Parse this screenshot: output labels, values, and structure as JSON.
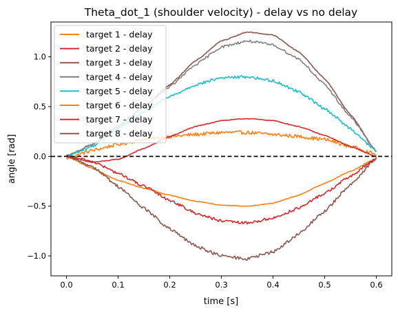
{
  "chart_data": {
    "type": "line",
    "title": "Theta_dot_1 (shoulder velocity) - delay vs no delay",
    "xlabel": "time [s]",
    "ylabel": "angle [rad]",
    "xlim": [
      -0.03,
      0.63
    ],
    "ylim": [
      -1.2,
      1.35
    ],
    "xticks": [
      0.0,
      0.1,
      0.2,
      0.3,
      0.4,
      0.5,
      0.6
    ],
    "xtick_labels": [
      "0.0",
      "0.1",
      "0.2",
      "0.3",
      "0.4",
      "0.5",
      "0.6"
    ],
    "yticks": [
      -1.0,
      -0.5,
      0.0,
      0.5,
      1.0
    ],
    "ytick_labels": [
      "−1.0",
      "−0.5",
      "0.0",
      "0.5",
      "1.0"
    ],
    "grid": false,
    "legend_position": "top-left",
    "reference_line": {
      "y": 0,
      "style": "dashed",
      "color": "#000000"
    },
    "series": [
      {
        "name": "target 1 - delay",
        "color": "#ff7f0e",
        "noise": 0.018,
        "x": [
          0.0,
          0.05,
          0.1,
          0.15,
          0.2,
          0.25,
          0.3,
          0.35,
          0.4,
          0.45,
          0.5,
          0.55,
          0.6
        ],
        "y": [
          -0.02,
          0.06,
          0.12,
          0.17,
          0.2,
          0.22,
          0.24,
          0.24,
          0.22,
          0.2,
          0.17,
          0.1,
          0.02
        ]
      },
      {
        "name": "target 2 - delay",
        "color": "#d62728",
        "noise": 0.004,
        "x": [
          0.0,
          0.05,
          0.1,
          0.15,
          0.2,
          0.25,
          0.3,
          0.35,
          0.4,
          0.45,
          0.5,
          0.55,
          0.6
        ],
        "y": [
          0.0,
          -0.06,
          -0.03,
          0.08,
          0.2,
          0.3,
          0.36,
          0.38,
          0.36,
          0.3,
          0.21,
          0.1,
          0.0
        ]
      },
      {
        "name": "target 3 - delay",
        "color": "#8c564b",
        "noise": 0.004,
        "x": [
          0.0,
          0.05,
          0.1,
          0.15,
          0.2,
          0.25,
          0.3,
          0.35,
          0.4,
          0.45,
          0.5,
          0.55,
          0.6
        ],
        "y": [
          0.0,
          0.12,
          0.3,
          0.5,
          0.72,
          0.96,
          1.16,
          1.25,
          1.22,
          1.05,
          0.78,
          0.42,
          0.05
        ]
      },
      {
        "name": "target 4 - delay",
        "color": "#7f7f7f",
        "noise": 0.012,
        "x": [
          0.0,
          0.05,
          0.1,
          0.15,
          0.2,
          0.25,
          0.3,
          0.35,
          0.4,
          0.45,
          0.5,
          0.55,
          0.6
        ],
        "y": [
          0.0,
          0.12,
          0.3,
          0.5,
          0.7,
          0.92,
          1.1,
          1.16,
          1.12,
          0.98,
          0.72,
          0.4,
          0.05
        ]
      },
      {
        "name": "target 5 - delay",
        "color": "#17becf",
        "noise": 0.014,
        "x": [
          0.0,
          0.05,
          0.1,
          0.15,
          0.2,
          0.25,
          0.3,
          0.35,
          0.4,
          0.45,
          0.5,
          0.55,
          0.6
        ],
        "y": [
          0.0,
          0.1,
          0.28,
          0.45,
          0.6,
          0.72,
          0.79,
          0.8,
          0.76,
          0.65,
          0.48,
          0.28,
          0.05
        ]
      },
      {
        "name": "target 6 - delay",
        "color": "#ff7f0e",
        "noise": 0.004,
        "x": [
          0.0,
          0.05,
          0.1,
          0.15,
          0.2,
          0.25,
          0.3,
          0.35,
          0.4,
          0.45,
          0.5,
          0.55,
          0.6
        ],
        "y": [
          0.0,
          -0.12,
          -0.24,
          -0.32,
          -0.39,
          -0.45,
          -0.49,
          -0.5,
          -0.47,
          -0.39,
          -0.27,
          -0.15,
          -0.02
        ]
      },
      {
        "name": "target 7 - delay",
        "color": "#d62728",
        "noise": 0.014,
        "x": [
          0.0,
          0.05,
          0.1,
          0.15,
          0.2,
          0.25,
          0.3,
          0.35,
          0.4,
          0.45,
          0.5,
          0.55,
          0.6
        ],
        "y": [
          0.0,
          -0.05,
          -0.17,
          -0.3,
          -0.44,
          -0.57,
          -0.65,
          -0.67,
          -0.62,
          -0.52,
          -0.37,
          -0.2,
          -0.02
        ]
      },
      {
        "name": "target 8 - delay",
        "color": "#8c564b",
        "noise": 0.016,
        "x": [
          0.0,
          0.05,
          0.1,
          0.15,
          0.2,
          0.25,
          0.3,
          0.35,
          0.4,
          0.45,
          0.5,
          0.55,
          0.6
        ],
        "y": [
          0.0,
          -0.1,
          -0.3,
          -0.52,
          -0.73,
          -0.9,
          -1.0,
          -1.03,
          -0.96,
          -0.78,
          -0.55,
          -0.28,
          -0.02
        ]
      }
    ]
  }
}
